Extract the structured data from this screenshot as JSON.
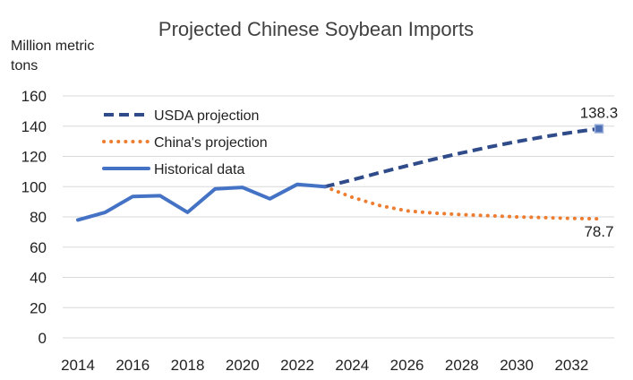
{
  "chart_data": {
    "type": "line",
    "title": "Projected Chinese Soybean Imports",
    "ylabel": "Million metric tons",
    "ylabel_lines": [
      "Million metric",
      "tons"
    ],
    "xlabel": "",
    "ylim": [
      0,
      160
    ],
    "xlim": [
      2014,
      2033
    ],
    "yticks": [
      0,
      20,
      40,
      60,
      80,
      100,
      120,
      140,
      160
    ],
    "xticks": [
      2014,
      2016,
      2018,
      2020,
      2022,
      2024,
      2026,
      2028,
      2030,
      2032
    ],
    "grid": true,
    "legend_position": "top-left",
    "series": [
      {
        "name": "USDA projection",
        "color": "#2F4B8A",
        "style": "dashed",
        "x": [
          2023,
          2024,
          2025,
          2026,
          2027,
          2028,
          2029,
          2030,
          2031,
          2032,
          2033
        ],
        "y": [
          100,
          104.5,
          109.2,
          113.8,
          118.2,
          122.3,
          126.2,
          129.8,
          133.0,
          135.8,
          138.3
        ],
        "end_label": "138.3",
        "end_marker": true
      },
      {
        "name": "China's projection",
        "color": "#ED7D31",
        "style": "dotted",
        "x": [
          2023,
          2024,
          2025,
          2026,
          2027,
          2028,
          2029,
          2030,
          2031,
          2032,
          2033
        ],
        "y": [
          100,
          93,
          87.5,
          84.0,
          82.5,
          81.5,
          80.8,
          80.0,
          79.5,
          79.0,
          78.7
        ],
        "end_label": "78.7"
      },
      {
        "name": "Historical data",
        "color": "#4472C4",
        "style": "solid",
        "x": [
          2014,
          2015,
          2016,
          2017,
          2018,
          2019,
          2020,
          2021,
          2022,
          2023
        ],
        "y": [
          78,
          83,
          93.5,
          94,
          83,
          98.5,
          99.5,
          92,
          101.5,
          100
        ]
      }
    ]
  }
}
